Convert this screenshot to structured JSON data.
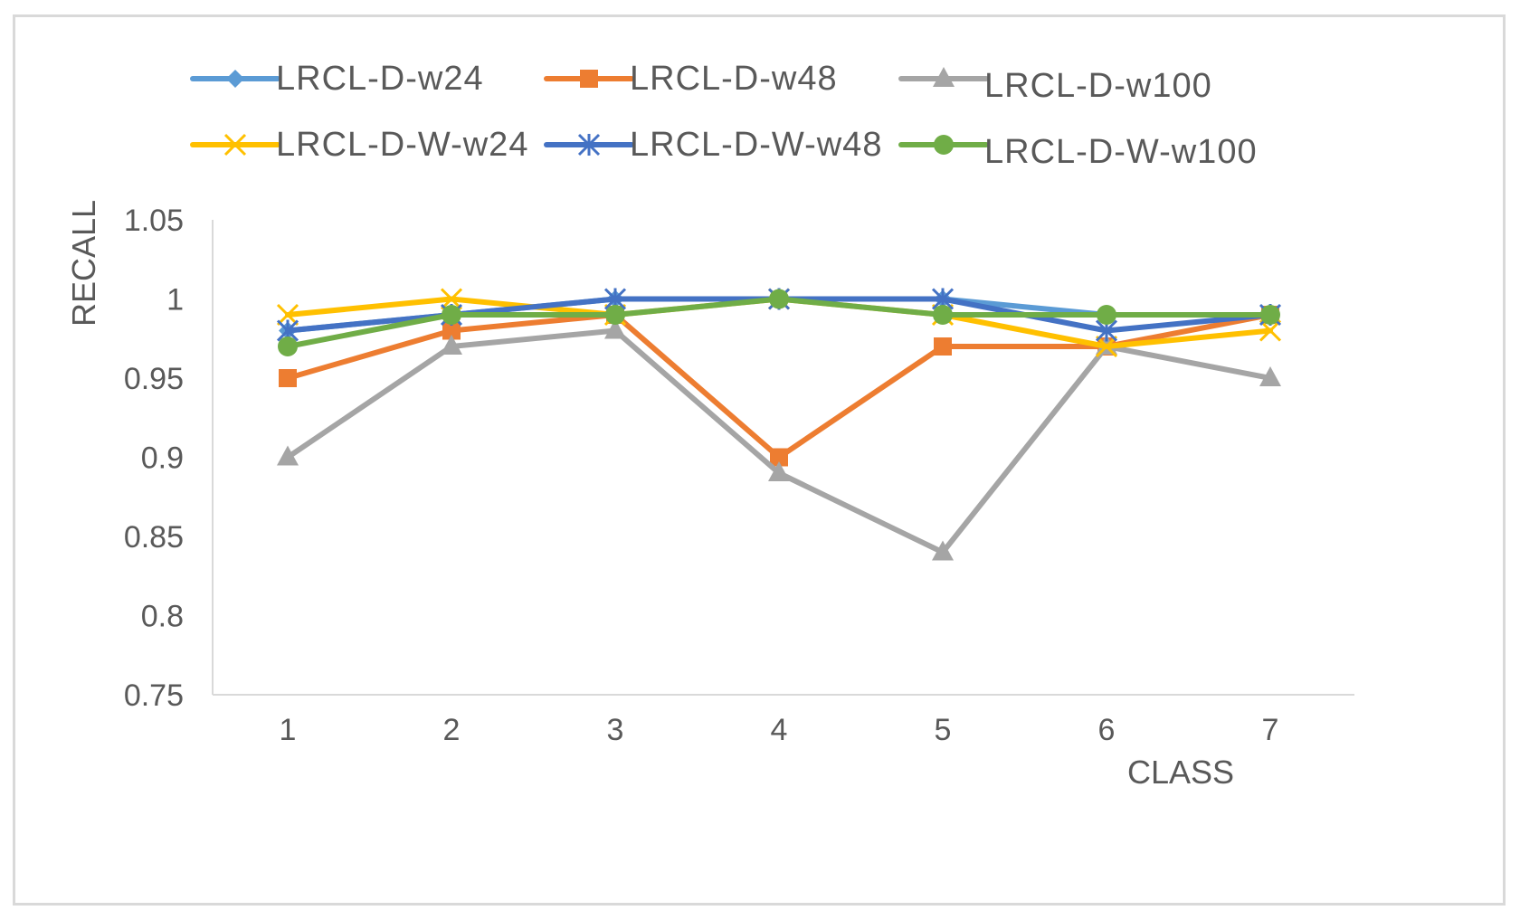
{
  "chart_data": {
    "type": "line",
    "title": "",
    "xlabel": "CLASS",
    "ylabel": "RECALL",
    "categories": [
      "1",
      "2",
      "3",
      "4",
      "5",
      "6",
      "7"
    ],
    "ylim": [
      0.75,
      1.05
    ],
    "yticks": [
      0.75,
      0.8,
      0.85,
      0.9,
      0.95,
      1,
      1.05
    ],
    "ytick_labels": [
      "0.75",
      "0.8",
      "0.85",
      "0.9",
      "0.95",
      "1",
      "1.05"
    ],
    "grid": false,
    "legend_position": "top",
    "series": [
      {
        "name": "LRCL-D-w24",
        "color": "#5b9bd5",
        "marker": "diamond",
        "values": [
          0.98,
          0.99,
          1.0,
          1.0,
          1.0,
          0.99,
          0.99
        ]
      },
      {
        "name": "LRCL-D-w48",
        "color": "#ed7d31",
        "marker": "square",
        "values": [
          0.95,
          0.98,
          0.99,
          0.9,
          0.97,
          0.97,
          0.99
        ]
      },
      {
        "name": "LRCL-D-w100",
        "color": "#a5a5a5",
        "marker": "triangle",
        "values": [
          0.9,
          0.97,
          0.98,
          0.89,
          0.84,
          0.97,
          0.95
        ]
      },
      {
        "name": "LRCL-D-W-w24",
        "color": "#ffc000",
        "marker": "x",
        "values": [
          0.99,
          1.0,
          0.99,
          1.0,
          0.99,
          0.97,
          0.98
        ]
      },
      {
        "name": "LRCL-D-W-w48",
        "color": "#4472c4",
        "marker": "star",
        "values": [
          0.98,
          0.99,
          1.0,
          1.0,
          1.0,
          0.98,
          0.99
        ]
      },
      {
        "name": "LRCL-D-W-w100",
        "color": "#70ad47",
        "marker": "circle",
        "values": [
          0.97,
          0.99,
          0.99,
          1.0,
          0.99,
          0.99,
          0.99
        ]
      }
    ]
  }
}
